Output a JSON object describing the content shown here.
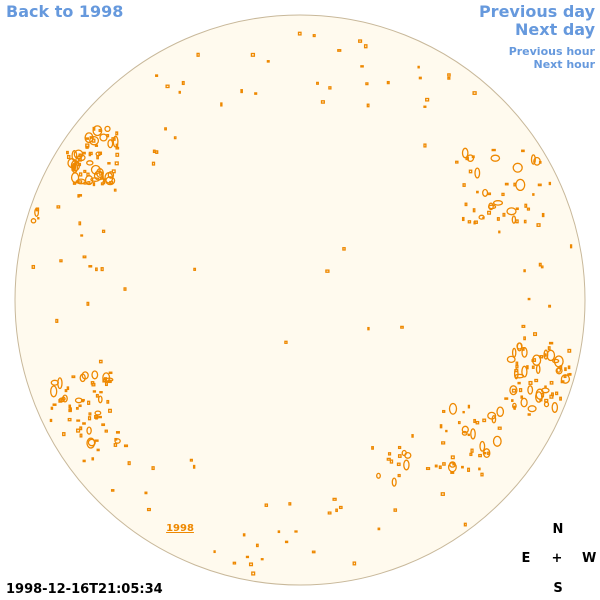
{
  "nav": {
    "back": "Back to 1998",
    "previous_day": "Previous day",
    "next_day": "Next day",
    "previous_hour": "Previous hour",
    "next_hour": "Next hour"
  },
  "disk_label": "1998",
  "timestamp": "1998-12-16T21:05:34",
  "compass": {
    "north": "N",
    "east": "E",
    "center": "+",
    "west": "W",
    "south": "S"
  },
  "colors": {
    "disk_fill": "#fffaee",
    "disk_border": "#c8b89a",
    "contour": "#ee8800",
    "link": "#6699dd"
  }
}
